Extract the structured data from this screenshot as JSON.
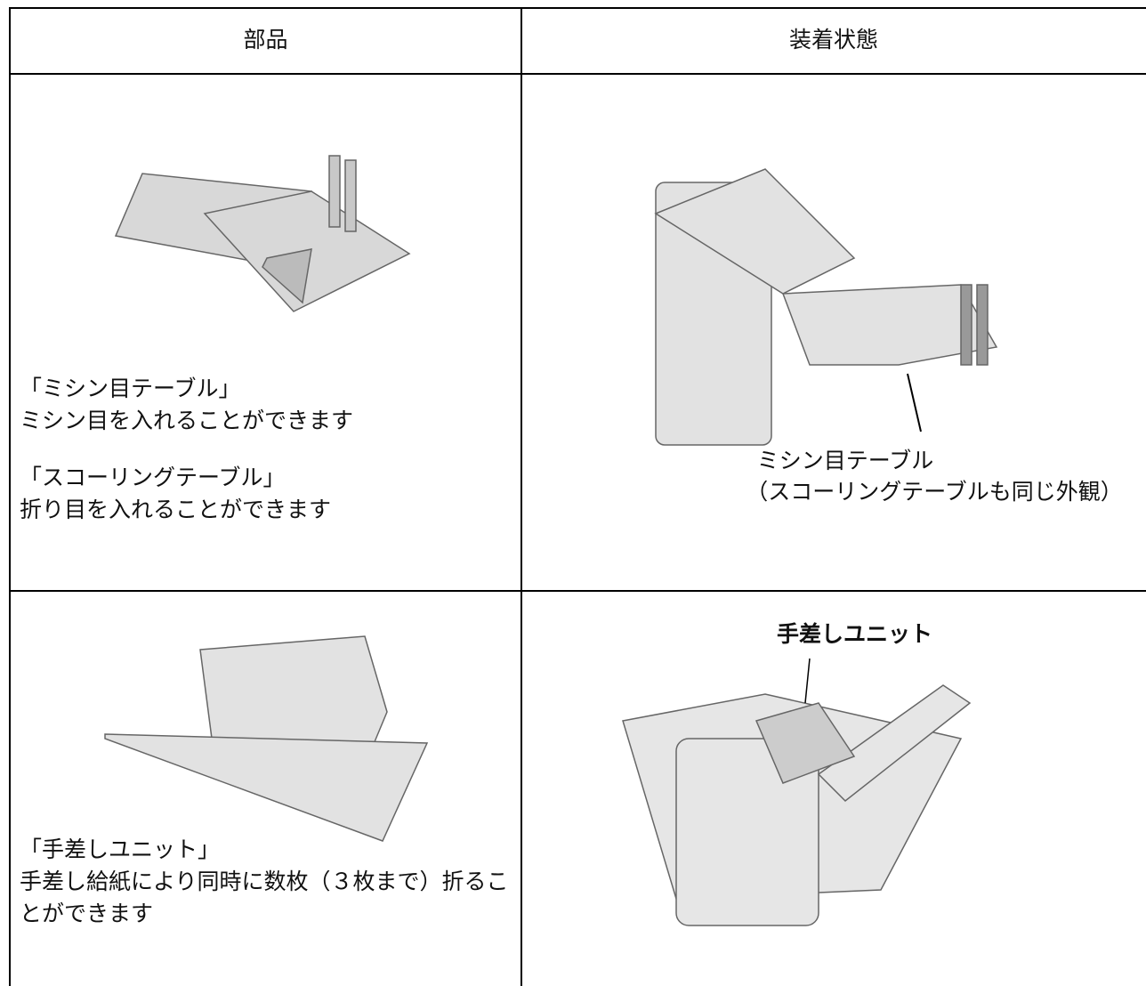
{
  "table": {
    "header": [
      "部品",
      "装着状態"
    ],
    "rows": [
      {
        "part_lines": [
          "「ミシン目テーブル」",
          "ミシン目を入れることができます",
          "「スコーリングテーブル」",
          "折り目を入れることができます"
        ],
        "installed_caption": [
          "ミシン目テーブル",
          "（スコーリングテーブルも同じ外観）"
        ]
      },
      {
        "part_lines": [
          "「手差しユニット」",
          "手差し給紙により同時に数枚（３枚まで）折ることができます"
        ],
        "installed_caption": [
          "手差しユニット"
        ]
      }
    ]
  }
}
